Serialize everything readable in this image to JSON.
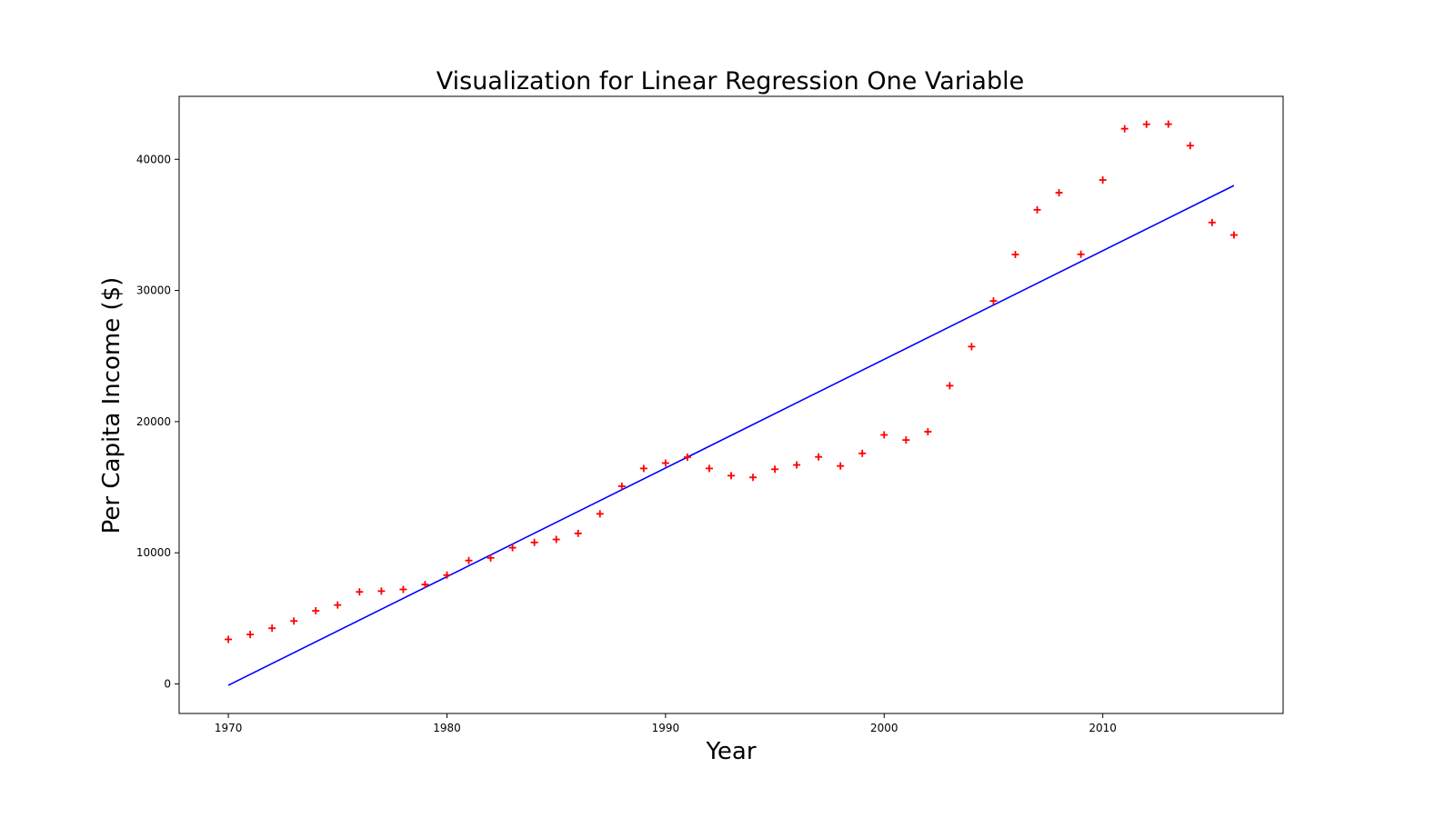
{
  "chart_data": {
    "type": "scatter",
    "title": "Visualization for Linear Regression One Variable",
    "xlabel": "Year",
    "ylabel": "Per Capita Income ($)",
    "xlim": [
      1967.75,
      2018.25
    ],
    "ylim": [
      -2250,
      44800
    ],
    "xticks": [
      1970,
      1980,
      1990,
      2000,
      2010
    ],
    "yticks": [
      0,
      10000,
      20000,
      30000,
      40000
    ],
    "grid": false,
    "series": [
      {
        "kind": "scatter",
        "marker": "plus",
        "color": "#ff0000",
        "x": [
          1970,
          1971,
          1972,
          1973,
          1974,
          1975,
          1976,
          1977,
          1978,
          1979,
          1980,
          1981,
          1982,
          1983,
          1984,
          1985,
          1986,
          1987,
          1988,
          1989,
          1990,
          1991,
          1992,
          1993,
          1994,
          1995,
          1996,
          1997,
          1998,
          1999,
          2000,
          2001,
          2002,
          2003,
          2004,
          2005,
          2006,
          2007,
          2008,
          2009,
          2010,
          2011,
          2012,
          2013,
          2014,
          2015,
          2016
        ],
        "y": [
          3400,
          3770,
          4250,
          4800,
          5580,
          6020,
          7020,
          7080,
          7210,
          7580,
          8300,
          9410,
          9610,
          10390,
          10790,
          11020,
          11480,
          12970,
          15080,
          16430,
          16840,
          17290,
          16430,
          15880,
          15750,
          16370,
          16700,
          17310,
          16620,
          17580,
          18990,
          18600,
          19230,
          22740,
          25720,
          29200,
          32740,
          36150,
          37450,
          32760,
          38420,
          42330,
          42670,
          42680,
          41040,
          35180,
          34230
        ]
      },
      {
        "kind": "line",
        "color": "#0000ff",
        "x": [
          1970,
          2016
        ],
        "y": [
          -100,
          38000
        ]
      }
    ]
  }
}
